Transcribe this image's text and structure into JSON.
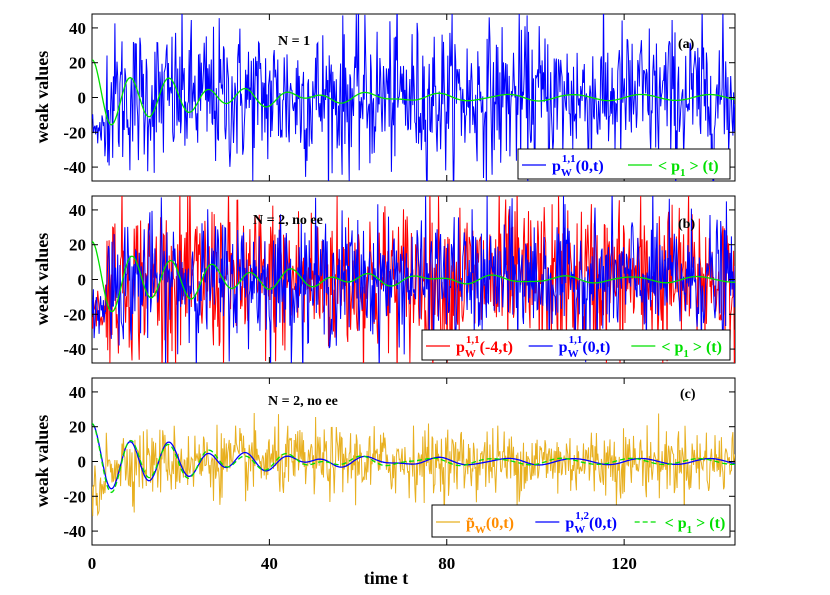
{
  "chart_data": [
    {
      "type": "line",
      "panel": "(a)",
      "annotation": "N = 1",
      "ylabel": "weak values",
      "xlabel": "",
      "xlim": [
        0,
        145
      ],
      "ylim": [
        -48,
        48
      ],
      "yticks": [
        "40",
        "20",
        "0",
        "-20",
        "-40"
      ],
      "series": [
        {
          "name": "p_W^{1,1}(0,t)",
          "color": "#0000ff",
          "style": "noise",
          "x": [
            0,
            145
          ],
          "amplitude": 28,
          "mean": 0
        },
        {
          "name": "< p_1 > (t)",
          "color": "#00e000",
          "style": "damped",
          "x": [
            0,
            145
          ],
          "initial": 20,
          "decay": 0.045,
          "omega": 0.72
        }
      ],
      "legend": [
        {
          "label": "p",
          "sup": "1,1",
          "sub": "W",
          "arg": "(0,t)",
          "color": "#0000ff"
        },
        {
          "label": "< p",
          "sub": "1",
          "arg": " > (t)",
          "color": "#00e000"
        }
      ]
    },
    {
      "type": "line",
      "panel": "(b)",
      "annotation": "N = 2, no ee",
      "ylabel": "weak values",
      "xlabel": "",
      "xlim": [
        0,
        145
      ],
      "ylim": [
        -48,
        48
      ],
      "yticks": [
        "40",
        "20",
        "0",
        "-20",
        "-40"
      ],
      "series": [
        {
          "name": "p_W^{1,1}(-4,t)",
          "color": "#ff0000",
          "style": "noise",
          "x": [
            0,
            145
          ],
          "amplitude": 30,
          "mean": 0
        },
        {
          "name": "p_W^{1,1}(0,t)",
          "color": "#0000ff",
          "style": "noise",
          "x": [
            0,
            145
          ],
          "amplitude": 24,
          "mean": 0
        },
        {
          "name": "< p_1 > (t)",
          "color": "#00e000",
          "style": "damped",
          "x": [
            0,
            145
          ],
          "initial": 20,
          "decay": 0.035,
          "omega": 0.7
        }
      ],
      "legend": [
        {
          "label": "p",
          "sup": "1,1",
          "sub": "W",
          "arg": "(-4,t)",
          "color": "#ff0000"
        },
        {
          "label": "p",
          "sup": "1,1",
          "sub": "W",
          "arg": "(0,t)",
          "color": "#0000ff"
        },
        {
          "label": "< p",
          "sub": "1",
          "arg": " > (t)",
          "color": "#00e000"
        }
      ]
    },
    {
      "type": "line",
      "panel": "(c)",
      "annotation": "N = 2, no ee",
      "ylabel": "weak values",
      "xlabel": "time t",
      "xlim": [
        0,
        145
      ],
      "ylim": [
        -48,
        48
      ],
      "yticks": [
        "40",
        "20",
        "0",
        "-20",
        "-40"
      ],
      "xticks": [
        "0",
        "40",
        "80",
        "120"
      ],
      "series": [
        {
          "name": "p~_W(0,t)",
          "color": "#e8b020",
          "style": "noise",
          "x": [
            0,
            145
          ],
          "amplitude": 13,
          "mean": 0
        },
        {
          "name": "p_W^{1,2}(0,t)",
          "color": "#0000ff",
          "style": "damped",
          "x": [
            0,
            145
          ],
          "initial": 20,
          "decay": 0.045,
          "omega": 0.72
        },
        {
          "name": "< p_1 > (t)",
          "color": "#00e000",
          "style": "damped-dashed",
          "x": [
            0,
            145
          ],
          "initial": 20,
          "decay": 0.045,
          "omega": 0.72
        }
      ],
      "legend": [
        {
          "label": "p̃",
          "sub": "W",
          "arg": "(0,t)",
          "color": "#ff8c00"
        },
        {
          "label": "p",
          "sup": "1,2",
          "sub": "W",
          "arg": "(0,t)",
          "color": "#0000ff"
        },
        {
          "label": "< p",
          "sub": "1",
          "arg": " > (t)",
          "color": "#00e000"
        }
      ]
    }
  ]
}
